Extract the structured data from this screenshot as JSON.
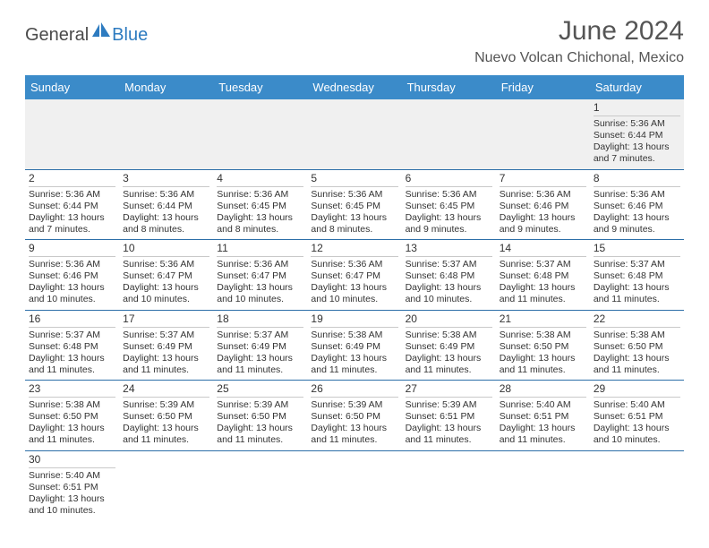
{
  "logo": {
    "text1": "General",
    "text2": "Blue"
  },
  "title": "June 2024",
  "subtitle": "Nuevo Volcan Chichonal, Mexico",
  "colors": {
    "header_bg": "#3b8bc9",
    "header_text": "#ffffff",
    "week_border": "#2d6fa8",
    "daynum_border": "#c9c9c9",
    "first_week_bg": "#f0f0f0",
    "logo_blue": "#2d7bc0",
    "text": "#333333"
  },
  "day_names": [
    "Sunday",
    "Monday",
    "Tuesday",
    "Wednesday",
    "Thursday",
    "Friday",
    "Saturday"
  ],
  "labels": {
    "sunrise": "Sunrise: ",
    "sunset": "Sunset: ",
    "daylight": "Daylight: "
  },
  "weeks": [
    [
      {
        "empty": true
      },
      {
        "empty": true
      },
      {
        "empty": true
      },
      {
        "empty": true
      },
      {
        "empty": true
      },
      {
        "empty": true
      },
      {
        "n": "1",
        "sr": "5:36 AM",
        "ss": "6:44 PM",
        "dl": "13 hours and 7 minutes."
      }
    ],
    [
      {
        "n": "2",
        "sr": "5:36 AM",
        "ss": "6:44 PM",
        "dl": "13 hours and 7 minutes."
      },
      {
        "n": "3",
        "sr": "5:36 AM",
        "ss": "6:44 PM",
        "dl": "13 hours and 8 minutes."
      },
      {
        "n": "4",
        "sr": "5:36 AM",
        "ss": "6:45 PM",
        "dl": "13 hours and 8 minutes."
      },
      {
        "n": "5",
        "sr": "5:36 AM",
        "ss": "6:45 PM",
        "dl": "13 hours and 8 minutes."
      },
      {
        "n": "6",
        "sr": "5:36 AM",
        "ss": "6:45 PM",
        "dl": "13 hours and 9 minutes."
      },
      {
        "n": "7",
        "sr": "5:36 AM",
        "ss": "6:46 PM",
        "dl": "13 hours and 9 minutes."
      },
      {
        "n": "8",
        "sr": "5:36 AM",
        "ss": "6:46 PM",
        "dl": "13 hours and 9 minutes."
      }
    ],
    [
      {
        "n": "9",
        "sr": "5:36 AM",
        "ss": "6:46 PM",
        "dl": "13 hours and 10 minutes."
      },
      {
        "n": "10",
        "sr": "5:36 AM",
        "ss": "6:47 PM",
        "dl": "13 hours and 10 minutes."
      },
      {
        "n": "11",
        "sr": "5:36 AM",
        "ss": "6:47 PM",
        "dl": "13 hours and 10 minutes."
      },
      {
        "n": "12",
        "sr": "5:36 AM",
        "ss": "6:47 PM",
        "dl": "13 hours and 10 minutes."
      },
      {
        "n": "13",
        "sr": "5:37 AM",
        "ss": "6:48 PM",
        "dl": "13 hours and 10 minutes."
      },
      {
        "n": "14",
        "sr": "5:37 AM",
        "ss": "6:48 PM",
        "dl": "13 hours and 11 minutes."
      },
      {
        "n": "15",
        "sr": "5:37 AM",
        "ss": "6:48 PM",
        "dl": "13 hours and 11 minutes."
      }
    ],
    [
      {
        "n": "16",
        "sr": "5:37 AM",
        "ss": "6:48 PM",
        "dl": "13 hours and 11 minutes."
      },
      {
        "n": "17",
        "sr": "5:37 AM",
        "ss": "6:49 PM",
        "dl": "13 hours and 11 minutes."
      },
      {
        "n": "18",
        "sr": "5:37 AM",
        "ss": "6:49 PM",
        "dl": "13 hours and 11 minutes."
      },
      {
        "n": "19",
        "sr": "5:38 AM",
        "ss": "6:49 PM",
        "dl": "13 hours and 11 minutes."
      },
      {
        "n": "20",
        "sr": "5:38 AM",
        "ss": "6:49 PM",
        "dl": "13 hours and 11 minutes."
      },
      {
        "n": "21",
        "sr": "5:38 AM",
        "ss": "6:50 PM",
        "dl": "13 hours and 11 minutes."
      },
      {
        "n": "22",
        "sr": "5:38 AM",
        "ss": "6:50 PM",
        "dl": "13 hours and 11 minutes."
      }
    ],
    [
      {
        "n": "23",
        "sr": "5:38 AM",
        "ss": "6:50 PM",
        "dl": "13 hours and 11 minutes."
      },
      {
        "n": "24",
        "sr": "5:39 AM",
        "ss": "6:50 PM",
        "dl": "13 hours and 11 minutes."
      },
      {
        "n": "25",
        "sr": "5:39 AM",
        "ss": "6:50 PM",
        "dl": "13 hours and 11 minutes."
      },
      {
        "n": "26",
        "sr": "5:39 AM",
        "ss": "6:50 PM",
        "dl": "13 hours and 11 minutes."
      },
      {
        "n": "27",
        "sr": "5:39 AM",
        "ss": "6:51 PM",
        "dl": "13 hours and 11 minutes."
      },
      {
        "n": "28",
        "sr": "5:40 AM",
        "ss": "6:51 PM",
        "dl": "13 hours and 11 minutes."
      },
      {
        "n": "29",
        "sr": "5:40 AM",
        "ss": "6:51 PM",
        "dl": "13 hours and 10 minutes."
      }
    ],
    [
      {
        "n": "30",
        "sr": "5:40 AM",
        "ss": "6:51 PM",
        "dl": "13 hours and 10 minutes."
      },
      {
        "empty": true
      },
      {
        "empty": true
      },
      {
        "empty": true
      },
      {
        "empty": true
      },
      {
        "empty": true
      },
      {
        "empty": true
      }
    ]
  ]
}
